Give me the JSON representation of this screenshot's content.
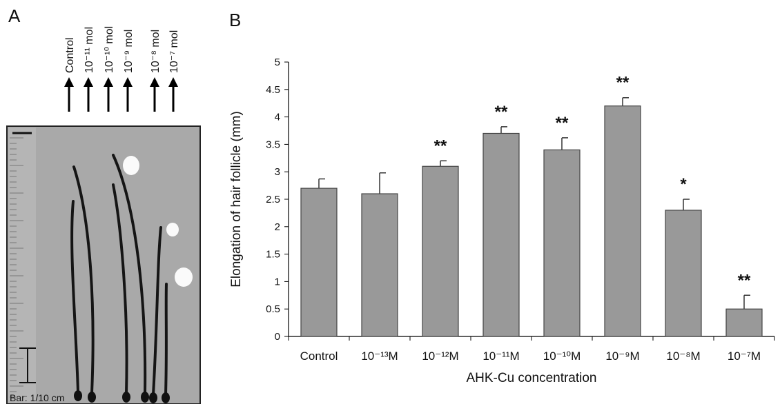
{
  "panel_a": {
    "label": "A",
    "arrow_labels": [
      "Control",
      "10⁻¹¹ mol",
      "10⁻¹⁰ mol",
      "10⁻⁹ mol",
      "10⁻⁸ mol",
      "10⁻⁷ mol"
    ],
    "scale_text": "Bar: 1/10 cm"
  },
  "chart_data": {
    "type": "bar",
    "panel_label": "B",
    "x_label": "AHK-Cu concentration",
    "y_label": "Elongation of hair follicle (mm)",
    "categories": [
      "Control",
      "10⁻¹³M",
      "10⁻¹²M",
      "10⁻¹¹M",
      "10⁻¹⁰M",
      "10⁻⁹M",
      "10⁻⁸M",
      "10⁻⁷M"
    ],
    "values": [
      2.7,
      2.6,
      3.1,
      3.7,
      3.4,
      4.2,
      2.3,
      0.5
    ],
    "errors": [
      0.17,
      0.38,
      0.1,
      0.12,
      0.22,
      0.15,
      0.2,
      0.25
    ],
    "significance": [
      null,
      null,
      "**",
      "**",
      "**",
      "**",
      "*",
      "**"
    ],
    "color": "#999999",
    "ylim": [
      0,
      5
    ],
    "yticks": [
      0,
      0.5,
      1,
      1.5,
      2,
      2.5,
      3,
      3.5,
      4,
      4.5,
      5
    ]
  }
}
